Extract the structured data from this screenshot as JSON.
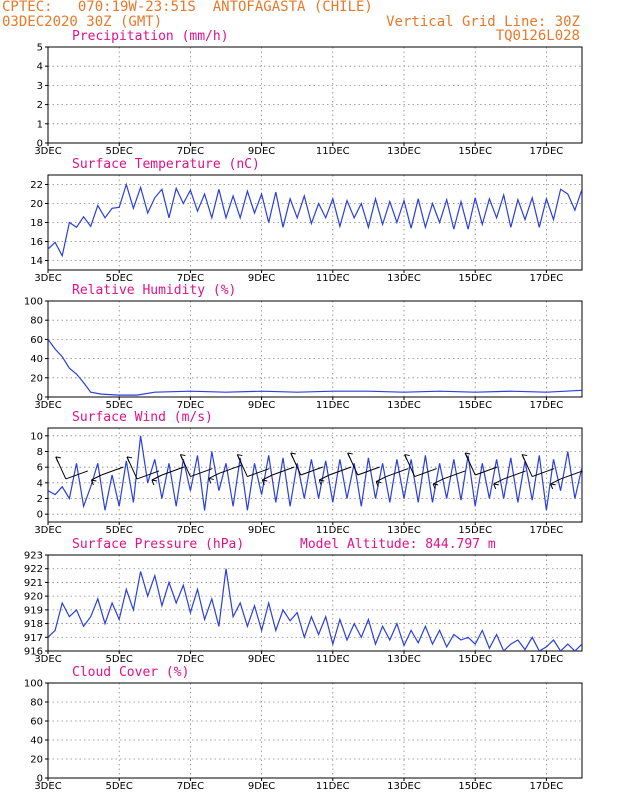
{
  "header": {
    "line1_left": "CPTEC:   070:19W-23:51S  ANTOFAGASTA (CHILE)",
    "line2_left": "03DEC2020 30Z (GMT)",
    "line2_right": "Vertical Grid Line: 30Z",
    "line3_right": "TQ0126L028"
  },
  "colors": {
    "header": "#e8782a",
    "panel_title": "#e0128a",
    "series": "#2b3fdd"
  },
  "x_labels": [
    "3DEC",
    "5DEC",
    "7DEC",
    "9DEC",
    "11DEC",
    "13DEC",
    "15DEC",
    "17DEC"
  ],
  "model_altitude": "Model Altitude: 844.797 m",
  "chart_data": [
    {
      "type": "line",
      "title": "Precipitation (mm/h)",
      "ylim": [
        0,
        5
      ],
      "yticks": [
        0,
        1,
        2,
        3,
        4,
        5
      ],
      "x": [
        "3DEC",
        "5DEC",
        "7DEC",
        "9DEC",
        "11DEC",
        "13DEC",
        "15DEC",
        "17DEC"
      ],
      "series": []
    },
    {
      "type": "line",
      "title": "Surface Temperature (nC)",
      "ylim": [
        13,
        23
      ],
      "yticks": [
        14,
        16,
        18,
        20,
        22
      ],
      "x_days": [
        0,
        0.2,
        0.4,
        0.6,
        0.8,
        1,
        1.2,
        1.4,
        1.6,
        1.8,
        2,
        2.2,
        2.4,
        2.6,
        2.8,
        3,
        3.2,
        3.4,
        3.6,
        3.8,
        4,
        4.2,
        4.4,
        4.6,
        4.8,
        5,
        5.2,
        5.4,
        5.6,
        5.8,
        6,
        6.2,
        6.4,
        6.6,
        6.8,
        7,
        7.2,
        7.4,
        7.6,
        7.8,
        8,
        8.2,
        8.4,
        8.6,
        8.8,
        9,
        9.2,
        9.4,
        9.6,
        9.8,
        10,
        10.2,
        10.4,
        10.6,
        10.8,
        11,
        11.2,
        11.4,
        11.6,
        11.8,
        12,
        12.2,
        12.4,
        12.6,
        12.8,
        13,
        13.2,
        13.4,
        13.6,
        13.8,
        14,
        14.2,
        14.4,
        14.6,
        14.8,
        15
      ],
      "series": [
        {
          "values": [
            15.2,
            15.9,
            14.5,
            18.0,
            17.5,
            18.6,
            17.6,
            19.8,
            18.5,
            19.5,
            19.6,
            22.0,
            19.5,
            21.7,
            19.0,
            20.6,
            21.5,
            18.5,
            21.6,
            20.0,
            21.4,
            19.2,
            21.0,
            18.5,
            21.5,
            18.5,
            20.8,
            18.5,
            21.3,
            19.0,
            21.0,
            18.0,
            21.2,
            17.5,
            20.5,
            18.5,
            20.8,
            17.9,
            20.0,
            18.5,
            20.5,
            17.6,
            20.3,
            18.5,
            20.0,
            17.5,
            20.5,
            17.8,
            20.2,
            18.0,
            20.3,
            17.4,
            20.5,
            17.5,
            20.0,
            18.0,
            20.4,
            17.3,
            20.2,
            17.3,
            20.6,
            17.8,
            20.5,
            18.5,
            20.9,
            17.5,
            20.4,
            18.3,
            20.6,
            17.5,
            20.5,
            18.3,
            21.5,
            21.0,
            19.3,
            21.5
          ]
        }
      ]
    },
    {
      "type": "line",
      "title": "Relative Humidity (%)",
      "ylim": [
        0,
        100
      ],
      "yticks": [
        0,
        20,
        40,
        60,
        80,
        100
      ],
      "x_days": [
        0,
        0.2,
        0.4,
        0.6,
        0.8,
        1,
        1.2,
        1.5,
        2,
        2.5,
        3,
        4,
        5,
        6,
        7,
        8,
        9,
        10,
        11,
        12,
        13,
        14,
        15
      ],
      "series": [
        {
          "values": [
            60,
            50,
            42,
            30,
            24,
            15,
            5,
            3,
            2,
            2,
            5,
            6,
            5,
            6,
            5,
            6,
            6,
            5,
            6,
            5,
            6,
            5,
            7
          ]
        }
      ]
    },
    {
      "type": "line",
      "title": "Surface Wind (m/s)",
      "ylim": [
        -1,
        11
      ],
      "yticks": [
        0,
        2,
        4,
        6,
        8,
        10
      ],
      "x_days": [
        0,
        0.2,
        0.4,
        0.6,
        0.8,
        1,
        1.2,
        1.4,
        1.6,
        1.8,
        2,
        2.2,
        2.4,
        2.6,
        2.8,
        3,
        3.2,
        3.4,
        3.6,
        3.8,
        4,
        4.2,
        4.4,
        4.6,
        4.8,
        5,
        5.2,
        5.4,
        5.6,
        5.8,
        6,
        6.2,
        6.4,
        6.6,
        6.8,
        7,
        7.2,
        7.4,
        7.6,
        7.8,
        8,
        8.2,
        8.4,
        8.6,
        8.8,
        9,
        9.2,
        9.4,
        9.6,
        9.8,
        10,
        10.2,
        10.4,
        10.6,
        10.8,
        11,
        11.2,
        11.4,
        11.6,
        11.8,
        12,
        12.2,
        12.4,
        12.6,
        12.8,
        13,
        13.2,
        13.4,
        13.6,
        13.8,
        14,
        14.2,
        14.4,
        14.6,
        14.8,
        15
      ],
      "series": [
        {
          "values": [
            3.0,
            2.5,
            3.5,
            2.0,
            6.5,
            1.0,
            3.5,
            6.5,
            0.5,
            5.0,
            1.0,
            6.8,
            1.5,
            10.0,
            4.0,
            7.0,
            2.0,
            6.5,
            1.0,
            7.0,
            3.0,
            7.5,
            0.5,
            8.0,
            3.0,
            6.5,
            1.0,
            7.2,
            0.5,
            6.5,
            2.5,
            7.5,
            1.5,
            7.2,
            1.0,
            6.5,
            2.0,
            7.0,
            2.0,
            6.8,
            1.5,
            7.0,
            2.0,
            6.5,
            1.0,
            7.2,
            2.0,
            6.5,
            1.5,
            7.0,
            2.0,
            7.0,
            1.5,
            7.5,
            1.5,
            6.5,
            2.0,
            7.0,
            1.8,
            7.5,
            1.0,
            6.5,
            2.0,
            7.0,
            2.0,
            7.2,
            1.5,
            6.8,
            1.8,
            7.5,
            0.5,
            7.0,
            3.0,
            8.0,
            2.0,
            6.0
          ]
        }
      ],
      "barbs_days": [
        0.5,
        1.5,
        2.5,
        3.2,
        4.0,
        4.8,
        5.6,
        6.3,
        7.1,
        7.9,
        8.7,
        9.5,
        10.3,
        11.1,
        12.0,
        12.8,
        13.6,
        14.4
      ],
      "barbs_speed": [
        4.5,
        5.0,
        4.5,
        5.0,
        4.8,
        5.2,
        4.8,
        5.0,
        5.0,
        5.0,
        5.0,
        4.8,
        4.8,
        4.5,
        5.0,
        4.5,
        4.8,
        4.5
      ]
    },
    {
      "type": "line",
      "title": "Surface Pressure (hPa)",
      "ylim": [
        916,
        923
      ],
      "yticks": [
        916,
        917,
        918,
        919,
        920,
        921,
        922,
        923
      ],
      "x_days": [
        0,
        0.2,
        0.4,
        0.6,
        0.8,
        1,
        1.2,
        1.4,
        1.6,
        1.8,
        2,
        2.2,
        2.4,
        2.6,
        2.8,
        3,
        3.2,
        3.4,
        3.6,
        3.8,
        4,
        4.2,
        4.4,
        4.6,
        4.8,
        5,
        5.2,
        5.4,
        5.6,
        5.8,
        6,
        6.2,
        6.4,
        6.6,
        6.8,
        7,
        7.2,
        7.4,
        7.6,
        7.8,
        8,
        8.2,
        8.4,
        8.6,
        8.8,
        9,
        9.2,
        9.4,
        9.6,
        9.8,
        10,
        10.2,
        10.4,
        10.6,
        10.8,
        11,
        11.2,
        11.4,
        11.6,
        11.8,
        12,
        12.2,
        12.4,
        12.6,
        12.8,
        13,
        13.2,
        13.4,
        13.6,
        13.8,
        14,
        14.2,
        14.4,
        14.6,
        14.8,
        15
      ],
      "series": [
        {
          "values": [
            917.0,
            917.5,
            919.5,
            918.5,
            919.0,
            917.8,
            918.5,
            919.8,
            918.0,
            919.5,
            918.3,
            920.5,
            919.0,
            921.8,
            920.0,
            921.5,
            919.3,
            921.0,
            919.5,
            920.8,
            918.8,
            920.5,
            918.3,
            919.8,
            917.8,
            922.0,
            918.5,
            919.5,
            917.8,
            919.3,
            917.5,
            919.5,
            917.5,
            919.0,
            918.2,
            918.8,
            917.0,
            918.5,
            917.2,
            918.5,
            916.5,
            918.3,
            916.8,
            918.0,
            917.0,
            918.3,
            916.5,
            917.8,
            916.8,
            918.0,
            916.4,
            917.5,
            916.6,
            917.8,
            916.5,
            917.5,
            916.3,
            917.2,
            916.8,
            917.0,
            916.5,
            917.5,
            916.2,
            917.2,
            916.0,
            916.5,
            916.8,
            916.1,
            917.0,
            916.0,
            916.3,
            916.8,
            916.0,
            916.5,
            916.0,
            916.5
          ]
        }
      ]
    },
    {
      "type": "line",
      "title": "Cloud Cover (%)",
      "ylim": [
        0,
        100
      ],
      "yticks": [
        0,
        20,
        40,
        60,
        80,
        100
      ],
      "x": [
        "3DEC",
        "5DEC",
        "7DEC",
        "9DEC",
        "11DEC",
        "13DEC",
        "15DEC",
        "17DEC"
      ],
      "series": []
    }
  ]
}
